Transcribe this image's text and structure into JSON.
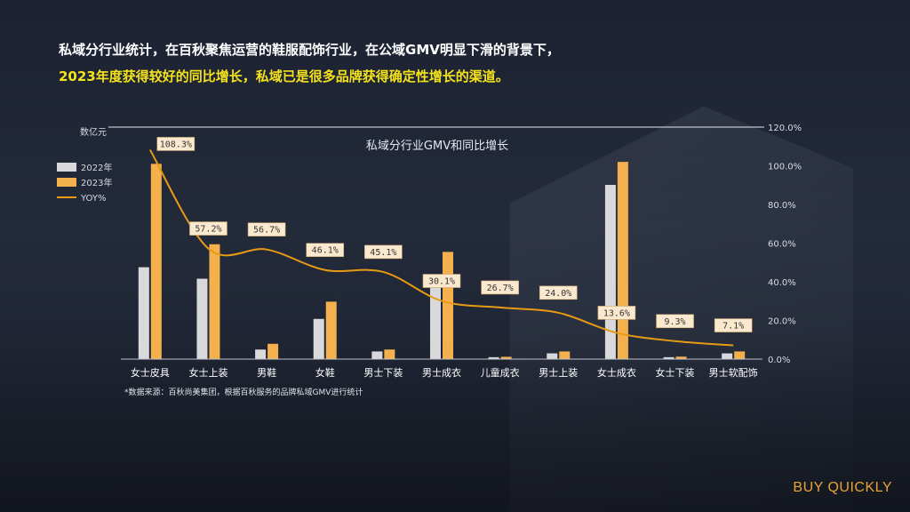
{
  "headline": {
    "line1": "私域分行业统计，在百秋聚焦运营的鞋服配饰行业，在公域GMV明显下滑的背景下，",
    "line2": "2023年度获得较好的同比增长，私域已是很多品牌获得确定性增长的渠道。"
  },
  "brand": "BUY QUICKLY",
  "colors": {
    "s2022": "#d9d9dc",
    "s2023": "#f3b04c",
    "yoy": "#e79b14",
    "label_bg": "#fbe9cf"
  },
  "chart_data": {
    "type": "bar",
    "title": "私域分行业GMV和同比增长",
    "ylabel": "数亿元",
    "note": "*数据来源：百秋尚美集团，根据百秋服务的品牌私域GMV进行统计",
    "categories": [
      "女士皮具",
      "女士上装",
      "男鞋",
      "女鞋",
      "男士下装",
      "男士成衣",
      "儿童成衣",
      "男士上装",
      "女士成衣",
      "女士下装",
      "男士软配饰"
    ],
    "y2_ticks": [
      "120.0%",
      "100.0%",
      "80.0%",
      "60.0%",
      "40.0%",
      "20.0%",
      "0.0%"
    ],
    "y2_range": [
      0,
      120
    ],
    "series": [
      {
        "name": "2022年",
        "values": [
          48,
          42,
          5,
          21,
          4,
          43,
          1,
          3,
          91,
          1,
          3
        ]
      },
      {
        "name": "2023年",
        "values": [
          102,
          60,
          8,
          30,
          5,
          56,
          1.2,
          4,
          103,
          1.3,
          4
        ]
      }
    ],
    "yoy": {
      "name": "YOY%",
      "values": [
        108.3,
        57.2,
        56.7,
        46.1,
        45.1,
        30.1,
        26.7,
        24.0,
        13.6,
        9.3,
        7.1
      ],
      "labels": [
        "108.3%",
        "57.2%",
        "56.7%",
        "46.1%",
        "45.1%",
        "30.1%",
        "26.7%",
        "24.0%",
        "13.6%",
        "9.3%",
        "7.1%"
      ]
    },
    "legend_position": "top-left",
    "grid": false
  }
}
